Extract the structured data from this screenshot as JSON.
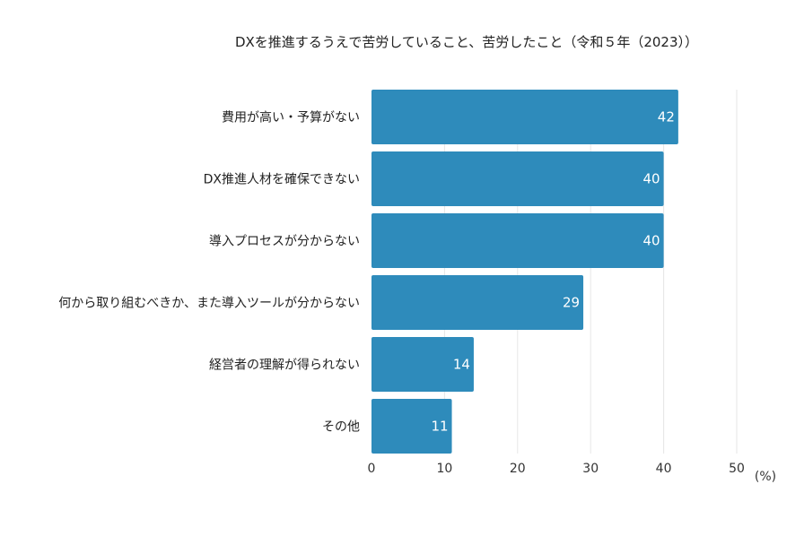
{
  "chart_data": {
    "type": "bar",
    "orientation": "horizontal",
    "title": "DXを推進するうえで苦労していること、苦労したこと（令和５年（2023））",
    "unit_label": "(%)",
    "categories": [
      "費用が高い・予算がない",
      "DX推進人材を確保できない",
      "導入プロセスが分からない",
      "何から取り組むべきか、また導入ツールが分からない",
      "経営者の理解が得られない",
      "その他"
    ],
    "values": [
      42,
      40,
      40,
      29,
      14,
      11
    ],
    "xlim": [
      0,
      50
    ],
    "xticks": [
      "0",
      "10",
      "20",
      "30",
      "40",
      "50"
    ],
    "grid": true,
    "bar_color": "#2e8bbb"
  }
}
